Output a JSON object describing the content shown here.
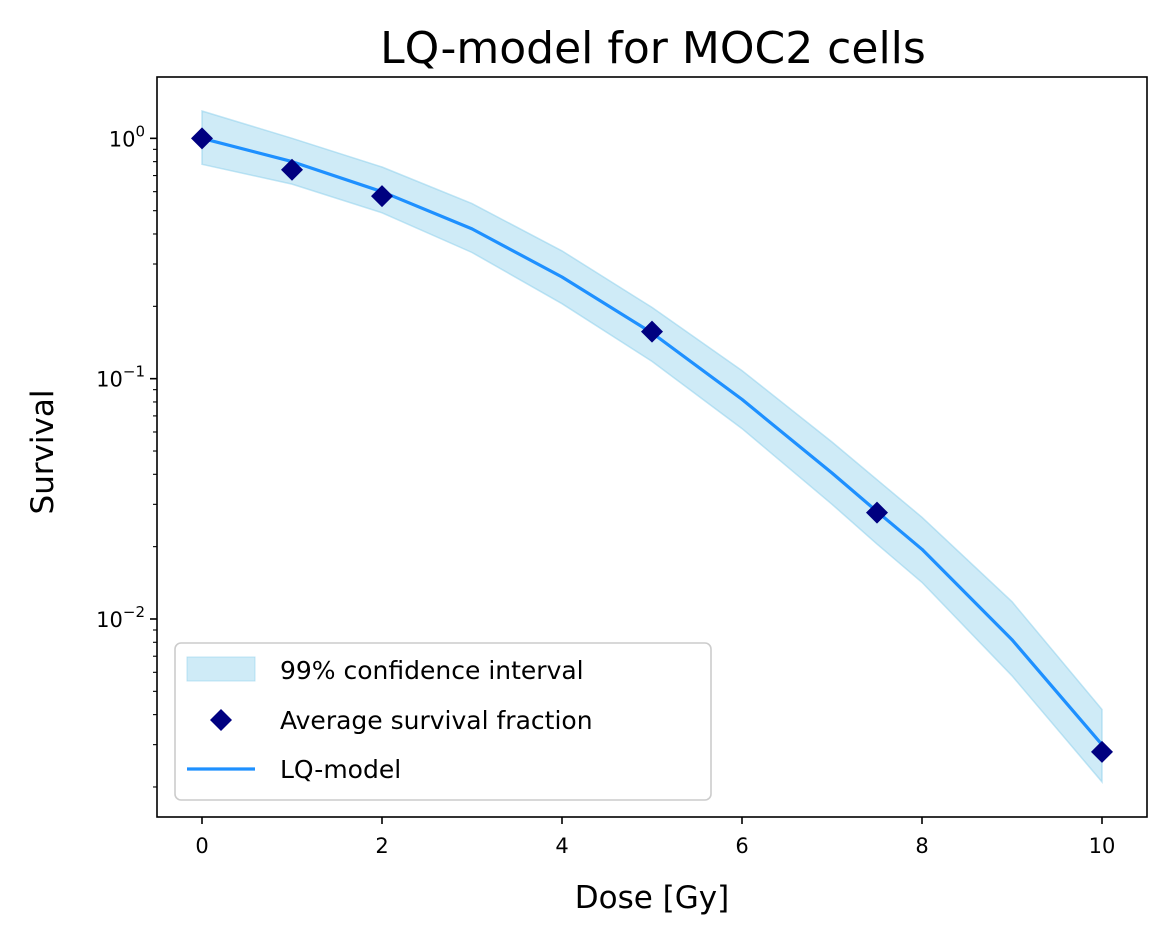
{
  "chart_data": {
    "type": "line",
    "title": "LQ-model for MOC2 cells",
    "xlabel": "Dose [Gy]",
    "ylabel": "Survival",
    "xscale": "linear",
    "yscale": "log",
    "xlim": [
      -0.5,
      10.5
    ],
    "ylim": [
      0.0015,
      1.8
    ],
    "x_ticks": [
      0,
      2,
      4,
      6,
      8,
      10
    ],
    "x_tick_labels": [
      "0",
      "2",
      "4",
      "6",
      "8",
      "10"
    ],
    "y_ticks": [
      {
        "value": 1,
        "base": "10",
        "exp": "0"
      },
      {
        "value": 0.1,
        "base": "10",
        "exp": "−1"
      },
      {
        "value": 0.01,
        "base": "10",
        "exp": "−2"
      }
    ],
    "grid": false,
    "legend_position": "lower-left",
    "series": [
      {
        "name": "99% confidence interval",
        "kind": "band",
        "color": "#87ceeb",
        "alpha": 0.4,
        "x": [
          0,
          1,
          2,
          3,
          4,
          5,
          6,
          7,
          7.5,
          8,
          9,
          10
        ],
        "lower": [
          0.78,
          0.645,
          0.49,
          0.335,
          0.205,
          0.118,
          0.062,
          0.03,
          0.0205,
          0.0142,
          0.0058,
          0.0021
        ],
        "upper": [
          1.3,
          1.0,
          0.76,
          0.535,
          0.34,
          0.198,
          0.108,
          0.0545,
          0.038,
          0.0265,
          0.0118,
          0.0042
        ]
      },
      {
        "name": "Average survival fraction",
        "kind": "scatter",
        "marker": "diamond",
        "color": "#000080",
        "x": [
          0,
          1,
          2,
          5,
          7.5,
          10
        ],
        "y": [
          1.0,
          0.74,
          0.575,
          0.157,
          0.0277,
          0.0028
        ]
      },
      {
        "name": "LQ-model",
        "kind": "line",
        "color": "#1e90ff",
        "x": [
          0,
          1,
          2,
          3,
          4,
          5,
          6,
          7,
          7.5,
          8,
          9,
          10
        ],
        "y": [
          1.0,
          0.8,
          0.6,
          0.42,
          0.265,
          0.155,
          0.082,
          0.0405,
          0.028,
          0.0195,
          0.0082,
          0.003
        ]
      }
    ]
  }
}
